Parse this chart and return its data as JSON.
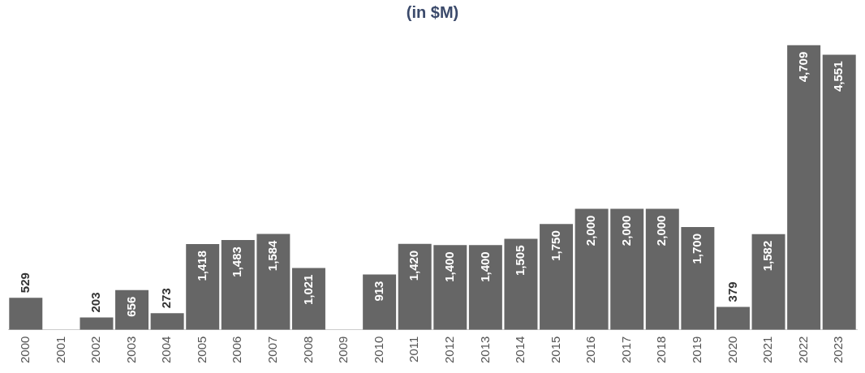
{
  "chart_data": {
    "type": "bar",
    "title": "(in $M)",
    "categories": [
      "2000",
      "2001",
      "2002",
      "2003",
      "2004",
      "2005",
      "2006",
      "2007",
      "2008",
      "2009",
      "2010",
      "2011",
      "2012",
      "2013",
      "2014",
      "2015",
      "2016",
      "2017",
      "2018",
      "2019",
      "2020",
      "2021",
      "2022",
      "2023"
    ],
    "values": [
      529,
      null,
      203,
      656,
      273,
      1418,
      1483,
      1584,
      1021,
      null,
      913,
      1420,
      1400,
      1400,
      1505,
      1750,
      2000,
      2000,
      2000,
      1700,
      379,
      1582,
      4709,
      4551
    ],
    "value_labels": [
      "529",
      null,
      "203",
      "656",
      "273",
      "1,418",
      "1,483",
      "1,584",
      "1,021",
      null,
      "913",
      "1,420",
      "1,400",
      "1,400",
      "1,505",
      "1,750",
      "2,000",
      "2,000",
      "2,000",
      "1,700",
      "379",
      "1,582",
      "4,709",
      "4,551"
    ],
    "color": "#666666",
    "grid": false,
    "legend": false
  }
}
